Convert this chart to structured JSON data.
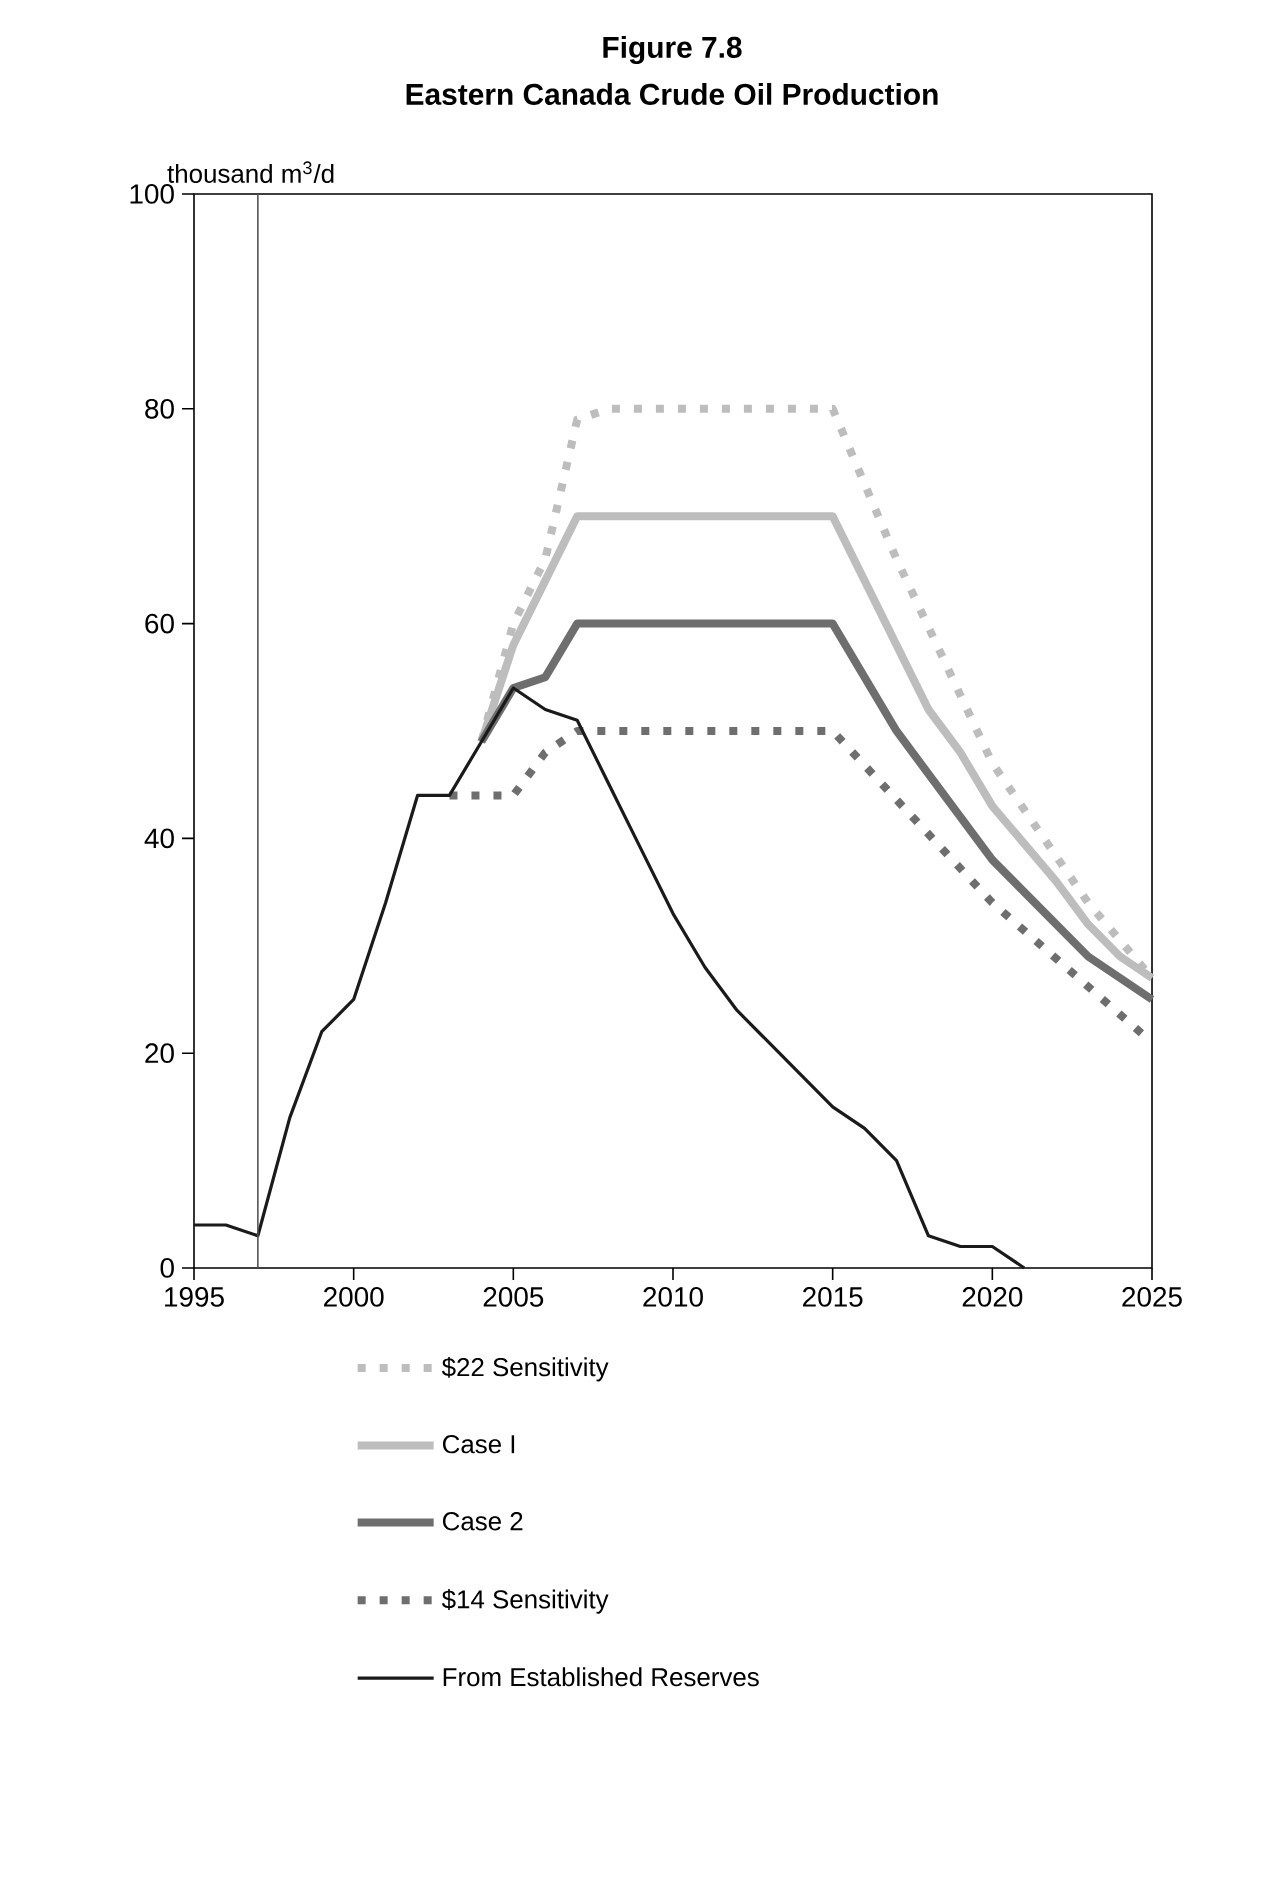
{
  "chart_data": {
    "type": "line",
    "title": "Figure 7.8",
    "subtitle": "Eastern Canada Crude Oil Production",
    "ylabel": "thousand m$^{3}$/d",
    "xlim": [
      1995,
      2025
    ],
    "xticks": [
      1995,
      2000,
      2005,
      2010,
      2015,
      2020,
      2025
    ],
    "ylim": [
      0,
      100
    ],
    "yticks": [
      0,
      20,
      40,
      60,
      80,
      100
    ],
    "grid": false,
    "legend": "bottom",
    "marker": "none",
    "ref_lines": [
      {
        "axis": "x",
        "value": 1997,
        "color": "#555555"
      }
    ],
    "series": [
      {
        "name": "$22 Sensitivity",
        "color": "#bdbdbd",
        "line_style": "dotted",
        "x": [
          2004,
          2005,
          2006,
          2007,
          2008,
          2015,
          2017,
          2020,
          2023,
          2025
        ],
        "values": [
          49,
          60,
          66,
          79,
          80,
          80,
          66,
          47,
          34,
          27
        ]
      },
      {
        "name": "Case I",
        "color": "#bdbdbd",
        "line_style": "solid",
        "x": [
          2004,
          2005,
          2006,
          2007,
          2015,
          2018,
          2019,
          2020,
          2022,
          2023,
          2024,
          2025
        ],
        "values": [
          49,
          58,
          64,
          70,
          70,
          52,
          48,
          43,
          36,
          32,
          29,
          27
        ]
      },
      {
        "name": "Case 2",
        "color": "#6e6e6e",
        "line_style": "solid",
        "x": [
          2004,
          2005,
          2006,
          2007,
          2015,
          2017,
          2020,
          2023,
          2025
        ],
        "values": [
          49,
          54,
          55,
          60,
          60,
          50,
          38,
          29,
          25
        ]
      },
      {
        "name": "$14 Sensitivity",
        "color": "#6e6e6e",
        "line_style": "dotted",
        "x": [
          2003,
          2005,
          2006,
          2007,
          2015,
          2020,
          2025
        ],
        "values": [
          44,
          44,
          48,
          50,
          50,
          34,
          21
        ]
      },
      {
        "name": "From Established Reserves",
        "color": "#1a1a1a",
        "line_style": "solid",
        "x": [
          1995,
          1996,
          1997,
          1998,
          1999,
          2000,
          2001,
          2002,
          2003,
          2004,
          2005,
          2006,
          2007,
          2008,
          2009,
          2010,
          2011,
          2012,
          2013,
          2014,
          2015,
          2016,
          2017,
          2018,
          2019,
          2020,
          2021
        ],
        "values": [
          4,
          4,
          3,
          14,
          22,
          25,
          34,
          44,
          44,
          49,
          54,
          52,
          51,
          45,
          39,
          33,
          28,
          24,
          21,
          18,
          15,
          13,
          10,
          3,
          2,
          2,
          0
        ]
      }
    ]
  }
}
